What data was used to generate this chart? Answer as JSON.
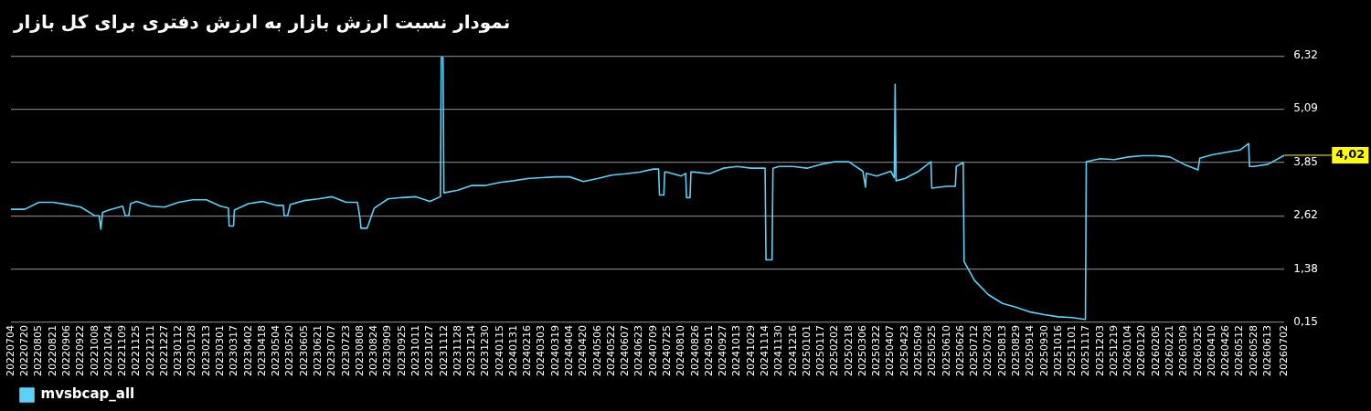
{
  "chart_data": {
    "type": "line",
    "title": "نمودار نسبت ارزش بازار به ارزش دفتری برای کل بازار",
    "x": [
      "2022-07-04",
      "2022-07-20",
      "2022-08-05",
      "2022-08-21",
      "2022-09-06",
      "2022-09-22",
      "2022-10-08",
      "2022-10-13",
      "2022-10-15",
      "2022-10-17",
      "2022-10-24",
      "2022-11-09",
      "2022-11-12",
      "2022-11-16",
      "2022-11-18",
      "2022-11-25",
      "2022-12-11",
      "2022-12-27",
      "2023-01-12",
      "2023-01-28",
      "2023-02-13",
      "2023-03-01",
      "2023-03-10",
      "2023-03-11",
      "2023-03-16",
      "2023-03-17",
      "2023-04-02",
      "2023-04-18",
      "2023-05-04",
      "2023-05-12",
      "2023-05-13",
      "2023-05-17",
      "2023-05-20",
      "2023-06-05",
      "2023-06-21",
      "2023-07-07",
      "2023-07-23",
      "2023-08-05",
      "2023-08-08",
      "2023-08-09",
      "2023-08-16",
      "2023-08-24",
      "2023-09-09",
      "2023-09-25",
      "2023-10-11",
      "2023-10-27",
      "2023-11-08",
      "2023-11-09",
      "2023-11-11",
      "2023-11-12",
      "2023-11-28",
      "2023-12-14",
      "2023-12-30",
      "2024-01-15",
      "2024-01-31",
      "2024-02-16",
      "2024-03-03",
      "2024-03-19",
      "2024-04-04",
      "2024-04-20",
      "2024-05-06",
      "2024-05-22",
      "2024-06-07",
      "2024-06-23",
      "2024-07-09",
      "2024-07-15",
      "2024-07-16",
      "2024-07-21",
      "2024-07-22",
      "2024-07-25",
      "2024-08-10",
      "2024-08-15",
      "2024-08-16",
      "2024-08-20",
      "2024-08-21",
      "2024-08-26",
      "2024-09-11",
      "2024-09-27",
      "2024-10-13",
      "2024-10-29",
      "2024-11-14",
      "2024-11-15",
      "2024-11-22",
      "2024-11-23",
      "2024-11-30",
      "2024-12-16",
      "2025-01-01",
      "2025-01-17",
      "2025-02-02",
      "2025-02-18",
      "2025-03-06",
      "2025-03-09",
      "2025-03-10",
      "2025-03-22",
      "2025-04-07",
      "2025-04-11",
      "2025-04-12",
      "2025-04-13",
      "2025-04-23",
      "2025-05-09",
      "2025-05-23",
      "2025-05-24",
      "2025-06-10",
      "2025-06-20",
      "2025-06-21",
      "2025-06-29",
      "2025-06-30",
      "2025-07-12",
      "2025-07-28",
      "2025-08-13",
      "2025-08-29",
      "2025-09-14",
      "2025-09-30",
      "2025-10-16",
      "2025-11-01",
      "2025-11-16",
      "2025-11-17",
      "2025-12-03",
      "2025-12-19",
      "2026-01-04",
      "2026-01-20",
      "2026-02-05",
      "2026-02-21",
      "2026-03-09",
      "2026-03-25",
      "2026-03-27",
      "2026-04-10",
      "2026-04-26",
      "2026-05-12",
      "2026-05-22",
      "2026-05-23",
      "2026-05-28",
      "2026-06-13",
      "2026-07-02"
    ],
    "series": [
      {
        "name": "mvsbcap_all",
        "color": "#5bd1f5",
        "values": [
          2.77,
          2.77,
          2.93,
          2.93,
          2.88,
          2.82,
          2.62,
          2.62,
          2.31,
          2.7,
          2.75,
          2.84,
          2.62,
          2.62,
          2.9,
          2.95,
          2.84,
          2.82,
          2.93,
          2.99,
          2.99,
          2.84,
          2.8,
          2.38,
          2.38,
          2.75,
          2.9,
          2.95,
          2.86,
          2.86,
          2.62,
          2.62,
          2.88,
          2.97,
          3.01,
          3.06,
          2.93,
          2.93,
          2.55,
          2.33,
          2.33,
          2.79,
          3.01,
          3.04,
          3.06,
          2.95,
          3.06,
          6.28,
          6.28,
          3.15,
          3.21,
          3.32,
          3.32,
          3.39,
          3.43,
          3.48,
          3.5,
          3.52,
          3.52,
          3.41,
          3.48,
          3.56,
          3.59,
          3.63,
          3.7,
          3.7,
          3.1,
          3.1,
          3.63,
          3.63,
          3.54,
          3.6,
          3.04,
          3.04,
          3.63,
          3.63,
          3.59,
          3.72,
          3.76,
          3.72,
          3.72,
          1.6,
          1.6,
          3.72,
          3.76,
          3.76,
          3.72,
          3.81,
          3.87,
          3.87,
          3.65,
          3.28,
          3.6,
          3.54,
          3.65,
          3.5,
          5.66,
          3.43,
          3.48,
          3.65,
          3.87,
          3.26,
          3.3,
          3.3,
          3.76,
          3.85,
          1.56,
          1.12,
          0.79,
          0.59,
          0.5,
          0.39,
          0.33,
          0.28,
          0.26,
          0.22,
          3.87,
          3.94,
          3.92,
          3.98,
          4.01,
          4.01,
          3.98,
          3.81,
          3.68,
          3.95,
          4.03,
          4.09,
          4.14,
          4.29,
          3.76,
          3.76,
          3.81,
          4.02
        ]
      }
    ],
    "xlim": [
      "2022-07-04",
      "2026-07-02"
    ],
    "xticks": [
      {
        "value": "2022-07-04",
        "label": "20220704"
      },
      {
        "value": "2022-07-20",
        "label": "20220720"
      },
      {
        "value": "2022-08-05",
        "label": "20220805"
      },
      {
        "value": "2022-08-21",
        "label": "20220821"
      },
      {
        "value": "2022-09-06",
        "label": "20220906"
      },
      {
        "value": "2022-09-22",
        "label": "20220922"
      },
      {
        "value": "2022-10-08",
        "label": "20221008"
      },
      {
        "value": "2022-10-24",
        "label": "20221024"
      },
      {
        "value": "2022-11-09",
        "label": "20221109"
      },
      {
        "value": "2022-11-25",
        "label": "20221125"
      },
      {
        "value": "2022-12-11",
        "label": "20221211"
      },
      {
        "value": "2022-12-27",
        "label": "20221227"
      },
      {
        "value": "2023-01-12",
        "label": "20230112"
      },
      {
        "value": "2023-01-28",
        "label": "20230128"
      },
      {
        "value": "2023-02-13",
        "label": "20230213"
      },
      {
        "value": "2023-03-01",
        "label": "20230301"
      },
      {
        "value": "2023-03-17",
        "label": "20230317"
      },
      {
        "value": "2023-04-02",
        "label": "20230402"
      },
      {
        "value": "2023-04-18",
        "label": "20230418"
      },
      {
        "value": "2023-05-04",
        "label": "20230504"
      },
      {
        "value": "2023-05-20",
        "label": "20230520"
      },
      {
        "value": "2023-06-05",
        "label": "20230605"
      },
      {
        "value": "2023-06-21",
        "label": "20230621"
      },
      {
        "value": "2023-07-07",
        "label": "20230707"
      },
      {
        "value": "2023-07-23",
        "label": "20230723"
      },
      {
        "value": "2023-08-08",
        "label": "20230808"
      },
      {
        "value": "2023-08-24",
        "label": "20230824"
      },
      {
        "value": "2023-09-09",
        "label": "20230909"
      },
      {
        "value": "2023-09-25",
        "label": "20230925"
      },
      {
        "value": "2023-10-11",
        "label": "20231011"
      },
      {
        "value": "2023-10-27",
        "label": "20231027"
      },
      {
        "value": "2023-11-12",
        "label": "20231112"
      },
      {
        "value": "2023-11-28",
        "label": "20231128"
      },
      {
        "value": "2023-12-14",
        "label": "20231214"
      },
      {
        "value": "2023-12-30",
        "label": "20231230"
      },
      {
        "value": "2024-01-15",
        "label": "20240115"
      },
      {
        "value": "2024-01-31",
        "label": "20240131"
      },
      {
        "value": "2024-02-16",
        "label": "20240216"
      },
      {
        "value": "2024-03-03",
        "label": "20240303"
      },
      {
        "value": "2024-03-19",
        "label": "20240319"
      },
      {
        "value": "2024-04-04",
        "label": "20240404"
      },
      {
        "value": "2024-04-20",
        "label": "20240420"
      },
      {
        "value": "2024-05-06",
        "label": "20240506"
      },
      {
        "value": "2024-05-22",
        "label": "20240522"
      },
      {
        "value": "2024-06-07",
        "label": "20240607"
      },
      {
        "value": "2024-06-23",
        "label": "20240623"
      },
      {
        "value": "2024-07-09",
        "label": "20240709"
      },
      {
        "value": "2024-07-25",
        "label": "20240725"
      },
      {
        "value": "2024-08-10",
        "label": "20240810"
      },
      {
        "value": "2024-08-26",
        "label": "20240826"
      },
      {
        "value": "2024-09-11",
        "label": "20240911"
      },
      {
        "value": "2024-09-27",
        "label": "20240927"
      },
      {
        "value": "2024-10-13",
        "label": "20241013"
      },
      {
        "value": "2024-10-29",
        "label": "20241029"
      },
      {
        "value": "2024-11-14",
        "label": "20241114"
      },
      {
        "value": "2024-11-30",
        "label": "20241130"
      },
      {
        "value": "2024-12-16",
        "label": "20241216"
      },
      {
        "value": "2025-01-01",
        "label": "20250101"
      },
      {
        "value": "2025-01-17",
        "label": "20250117"
      },
      {
        "value": "2025-02-02",
        "label": "20250202"
      },
      {
        "value": "2025-02-18",
        "label": "20250218"
      },
      {
        "value": "2025-03-06",
        "label": "20250306"
      },
      {
        "value": "2025-03-22",
        "label": "20250322"
      },
      {
        "value": "2025-04-07",
        "label": "20250407"
      },
      {
        "value": "2025-04-23",
        "label": "20250423"
      },
      {
        "value": "2025-05-09",
        "label": "20250509"
      },
      {
        "value": "2025-05-25",
        "label": "20250525"
      },
      {
        "value": "2025-06-10",
        "label": "20250610"
      },
      {
        "value": "2025-06-26",
        "label": "20250626"
      },
      {
        "value": "2025-07-12",
        "label": "20250712"
      },
      {
        "value": "2025-07-28",
        "label": "20250728"
      },
      {
        "value": "2025-08-13",
        "label": "20250813"
      },
      {
        "value": "2025-08-29",
        "label": "20250829"
      },
      {
        "value": "2025-09-14",
        "label": "20250914"
      },
      {
        "value": "2025-09-30",
        "label": "20250930"
      },
      {
        "value": "2025-10-16",
        "label": "20251016"
      },
      {
        "value": "2025-11-01",
        "label": "20251101"
      },
      {
        "value": "2025-11-17",
        "label": "20251117"
      },
      {
        "value": "2025-12-03",
        "label": "20251203"
      },
      {
        "value": "2025-12-19",
        "label": "20251219"
      },
      {
        "value": "2026-01-04",
        "label": "20260104"
      },
      {
        "value": "2026-01-20",
        "label": "20260120"
      },
      {
        "value": "2026-02-05",
        "label": "20260205"
      },
      {
        "value": "2026-02-21",
        "label": "20260221"
      },
      {
        "value": "2026-03-09",
        "label": "20260309"
      },
      {
        "value": "2026-03-25",
        "label": "20260325"
      },
      {
        "value": "2026-04-10",
        "label": "20260410"
      },
      {
        "value": "2026-04-26",
        "label": "20260426"
      },
      {
        "value": "2026-05-12",
        "label": "20260512"
      },
      {
        "value": "2026-05-28",
        "label": "20260528"
      },
      {
        "value": "2026-06-13",
        "label": "20260613"
      },
      {
        "value": "2026-07-02",
        "label": "20260702"
      }
    ],
    "ylim": [
      0.15,
      6.32
    ],
    "yticks": [
      {
        "value": 0.15,
        "label": "0,15"
      },
      {
        "value": 1.38,
        "label": "1,38"
      },
      {
        "value": 2.62,
        "label": "2,62"
      },
      {
        "value": 3.85,
        "label": "3,85"
      },
      {
        "value": 5.09,
        "label": "5,09"
      },
      {
        "value": 6.32,
        "label": "6,32"
      }
    ],
    "annotations": [
      {
        "text": "4,02",
        "x": "2026-07-02",
        "y": 4.02
      }
    ],
    "grid": "y",
    "legend": "bottom left",
    "marker": "none",
    "line_style": "solid"
  }
}
